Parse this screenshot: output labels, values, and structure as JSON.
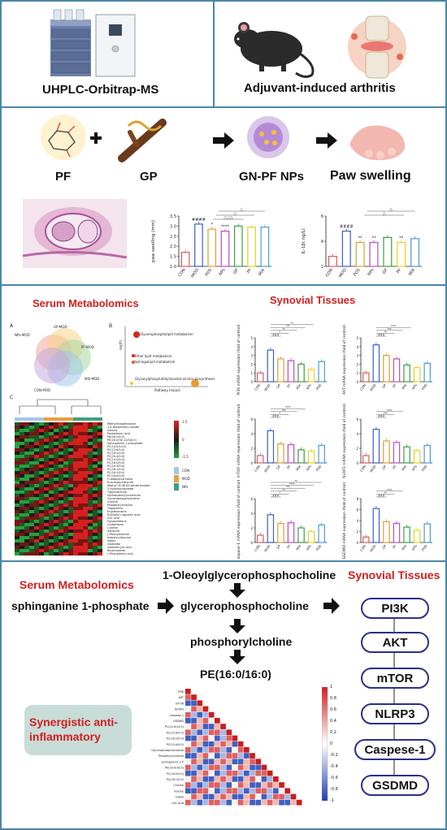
{
  "panel1": {
    "left_label": "UHPLC-Orbitrap-MS",
    "right_label": "Adjuvant-induced arthritis"
  },
  "panel2": {
    "pf_label": "PF",
    "gp_label": "GP",
    "np_label": "GN-PF NPs",
    "paw_label": "Paw swelling",
    "chart_data": [
      {
        "type": "bar",
        "title": "",
        "xlabel": "",
        "ylabel": "paw swelling (mm)",
        "categories": [
          "CON",
          "MOD",
          "POS",
          "NPs",
          "GP",
          "PF",
          "MIX"
        ],
        "values": [
          1.7,
          3.1,
          2.85,
          2.75,
          3.0,
          2.95,
          2.95
        ],
        "ylim": [
          1.0,
          3.5
        ],
        "yticks": [
          "1.0",
          "1.5",
          "2.0",
          "2.5",
          "3.0",
          "3.5"
        ],
        "sig_labels": [
          "",
          "####",
          "*",
          "****",
          "",
          "",
          ""
        ],
        "bracket_labels": [
          "△",
          "△",
          "△△△"
        ]
      },
      {
        "type": "bar",
        "title": "",
        "xlabel": "",
        "ylabel": "IL-1β( ng/L)",
        "categories": [
          "CON",
          "MOD",
          "POS",
          "NPs",
          "GP",
          "PF",
          "MIX"
        ],
        "values": [
          2.8,
          4.8,
          3.9,
          3.9,
          4.3,
          3.9,
          4.2
        ],
        "ylim": [
          2,
          6
        ],
        "yticks": [
          "2",
          "4",
          "6"
        ],
        "sig_labels": [
          "",
          "####",
          "**",
          "**",
          "",
          "**",
          ""
        ],
        "bracket_labels": [
          "△",
          "△"
        ]
      }
    ]
  },
  "panel3": {
    "left_title": "Serum Metabolomics",
    "right_title": "Synovial Tissues",
    "sub_a": "A",
    "sub_b": "B",
    "sub_c": "C",
    "venn_labels": [
      "NPs-MOD",
      "GP-MOD",
      "PF-MOD",
      "MIX-MOD",
      "CON-MOD"
    ],
    "bubble_labels": [
      "Glycerophospholipid metabolism",
      "Ether lipid metabolism",
      "Sphingolipid metabolism",
      "Glycosylphosphatidylinositol-anchor biosynthesis"
    ],
    "bubble_xlabel": "Pathway Impact",
    "bubble_ylabel": "-log(P)",
    "heatmap_legend_ticks": [
      "1.5",
      "0",
      "-1.5"
    ],
    "heatmap_group_legend": [
      "CON",
      "MOD",
      "NPs"
    ],
    "heatmap_rows": [
      "Methylthioadenosine",
      "1,4-Dioxoindoly-nonide",
      "Inosine",
      "Pantothenic acid",
      "PA(18:1/0:0)",
      "PE(18:2(9Z,12Z)/0:0)",
      "Sphinganine 1-phosphate",
      "PC(14:0/14:0)",
      "PC(22:6/0:0)",
      "PC(18:2/0:0)",
      "PC(20:4/0:0)",
      "PC(15:0/0:0)",
      "PC(16:0/0:0)",
      "PC(20:3/0:0)",
      "PC(18:1/0:0)",
      "PC(16:1/0:0)",
      "PC(18:0/0:0)",
      "O-adipoylcarnitine",
      "N-Acetylputrescine",
      "Methyl 2E,4E,6Z-decatrienoate",
      "2-Hydroxycaproate",
      "Tiglylcarnitine",
      "Hydroxybutyrylcarnitine",
      "Glycerophosphocholine",
      "Choline",
      "Phosphorylcholine",
      "Trigonelline",
      "Ergothioneine",
      "N-Acetyl-L-aspartic acid",
      "Uric acid",
      "Hypoxanthine",
      "Glutathione",
      "L-Valine",
      "Xanthine",
      "L-Phenylalanine",
      "Isobutyrylglycine",
      "Indole",
      "Galactitol",
      "Indoleacrylic acid",
      "Nicotinamide",
      "L-Phenyllactic acid"
    ],
    "chart_data": [
      {
        "type": "bar",
        "title": "",
        "xlabel": "",
        "ylabel": "PI3K mRNA expression (fold of control)",
        "categories": [
          "CON",
          "MOD",
          "GP",
          "PF",
          "MIX",
          "NPs",
          "POS"
        ],
        "values": [
          1.0,
          3.6,
          2.6,
          2.4,
          2.0,
          1.4,
          2.3
        ],
        "ylim": [
          0,
          5
        ],
        "yticks": [
          "0",
          "1",
          "2",
          "3",
          "4",
          "5"
        ],
        "sig_labels": [
          "###",
          "*",
          "**",
          "***",
          "**"
        ]
      },
      {
        "type": "bar",
        "title": "",
        "xlabel": "",
        "ylabel": "AKT mRNA expression (fold of control)",
        "categories": [
          "CON",
          "MOD",
          "GP",
          "PF",
          "MIX",
          "NPs",
          "POS"
        ],
        "values": [
          1.0,
          4.2,
          3.0,
          2.6,
          1.9,
          1.6,
          2.1
        ],
        "ylim": [
          0,
          5
        ],
        "yticks": [
          "0",
          "1",
          "2",
          "3",
          "4",
          "5"
        ],
        "sig_labels": [
          "###",
          "**",
          "***",
          "****"
        ]
      },
      {
        "type": "bar",
        "title": "",
        "xlabel": "",
        "ylabel": "mTOR mRNA expression (fold of control)",
        "categories": [
          "CON",
          "MOD",
          "GP",
          "PF",
          "MIX",
          "NPs",
          "POS"
        ],
        "values": [
          1.0,
          4.4,
          2.6,
          2.5,
          1.8,
          1.6,
          2.4
        ],
        "ylim": [
          0,
          6
        ],
        "yticks": [
          "0",
          "2",
          "4",
          "6"
        ],
        "sig_labels": [
          "###",
          "*",
          "***",
          "****"
        ]
      },
      {
        "type": "bar",
        "title": "",
        "xlabel": "",
        "ylabel": "NLRP3 mRNA expression (fold of control)",
        "categories": [
          "CON",
          "MOD",
          "GP",
          "PF",
          "MIX",
          "NPs",
          "POS"
        ],
        "values": [
          1.0,
          4.6,
          3.0,
          2.8,
          2.2,
          1.7,
          2.4
        ],
        "ylim": [
          0,
          6
        ],
        "yticks": [
          "0",
          "2",
          "4",
          "6"
        ],
        "sig_labels": [
          "###",
          "***",
          "****"
        ]
      },
      {
        "type": "bar",
        "title": "",
        "xlabel": "",
        "ylabel": "Caspase-1 mRNA expression (fold of control)",
        "categories": [
          "CON",
          "MOD",
          "GP",
          "PF",
          "MIX",
          "NPs",
          "POS"
        ],
        "values": [
          1.0,
          3.8,
          2.6,
          2.7,
          2.0,
          1.5,
          2.4
        ],
        "ylim": [
          0,
          6
        ],
        "yticks": [
          "0",
          "2",
          "4",
          "6"
        ],
        "sig_labels": [
          "###",
          "*",
          "**",
          "***",
          "****",
          "**"
        ]
      },
      {
        "type": "bar",
        "title": "",
        "xlabel": "",
        "ylabel": "GSDMD mRNA expression (fold of control)",
        "categories": [
          "CON",
          "MOD",
          "GP",
          "PF",
          "MIX",
          "NPs",
          "POS"
        ],
        "values": [
          1.0,
          6.2,
          3.8,
          3.5,
          2.8,
          2.2,
          3.4
        ],
        "ylim": [
          0,
          8
        ],
        "yticks": [
          "0",
          "2",
          "4",
          "6",
          "8"
        ],
        "sig_labels": [
          "###",
          "**",
          "****"
        ]
      }
    ]
  },
  "panel4": {
    "left_title": "Serum Metabolomics",
    "right_title": "Synovial Tissues",
    "top_metabolite": "1-Oleoylglycerophosphocholine",
    "start_metabolite": "sphinganine 1-phosphate",
    "mid_metabolite": "glycerophosphocholine",
    "next_metabolite": "phosphorylcholine",
    "end_metabolite": "PE(16:0/16:0)",
    "synergy_label": "Synergistic anti-inflammatory",
    "pathway": [
      "PI3K",
      "AKT",
      "mTOR",
      "NLRP3",
      "Caspese-1",
      "GSDMD"
    ],
    "corr_scale_ticks": [
      "1",
      "0.8",
      "0.6",
      "0.4",
      "0.2",
      "0",
      "-0.2",
      "-0.4",
      "-0.6",
      "-0.8",
      "-1"
    ],
    "corr_labels": [
      "PI3K",
      "AKT",
      "mTOR",
      "NLRP3",
      "Caspase-1",
      "GSDMD",
      "PC(14:0/14:0)",
      "PC(22:6/0:0)",
      "PC(18:2/0:0)",
      "PC(20:4/0:0)",
      "Glycerophosphocholine",
      "Phosphorylcholine",
      "Sphinganine 1-P",
      "PE(16:0/16:0)",
      "PC(16:0/0:0)",
      "PC(18:1/0:0)",
      "Choline",
      "Inosine",
      "Indole",
      "Uric acid"
    ]
  },
  "colors": {
    "frame": "#4a86a8",
    "red_title": "#d11f1f",
    "pathway_border": "#2b2f8a",
    "bars": [
      "#e05a5a",
      "#3d5fcc",
      "#e0a030",
      "#c04ac0",
      "#3aa040",
      "#e8d020",
      "#4a9ad0"
    ]
  }
}
